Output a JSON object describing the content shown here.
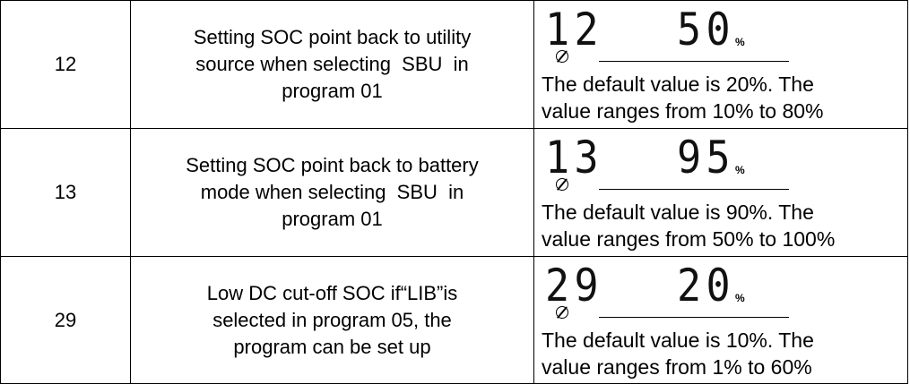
{
  "table": {
    "rows": [
      {
        "number": "12",
        "description": [
          "Setting SOC point back to utility",
          "source when selecting  SBU  in",
          "program 01"
        ],
        "display": {
          "program": "12",
          "value": "50",
          "unit": "%"
        },
        "note": [
          "The default value is 20%. The",
          "value ranges from 10% to 80%"
        ]
      },
      {
        "number": "13",
        "description": [
          "Setting SOC point back to battery",
          "mode when selecting  SBU  in",
          "program 01"
        ],
        "display": {
          "program": "13",
          "value": "95",
          "unit": "%"
        },
        "note": [
          "The default value is 90%. The",
          "value ranges from 50% to 100%"
        ]
      },
      {
        "number": "29",
        "description": [
          "Low DC cut-off SOC if“LIB”is",
          "selected in program 05, the",
          "program can be set up"
        ],
        "display": {
          "program": "29",
          "value": "20",
          "unit": "%"
        },
        "note": [
          "The default value is 10%. The",
          "value ranges from 1% to 60%"
        ]
      }
    ]
  }
}
